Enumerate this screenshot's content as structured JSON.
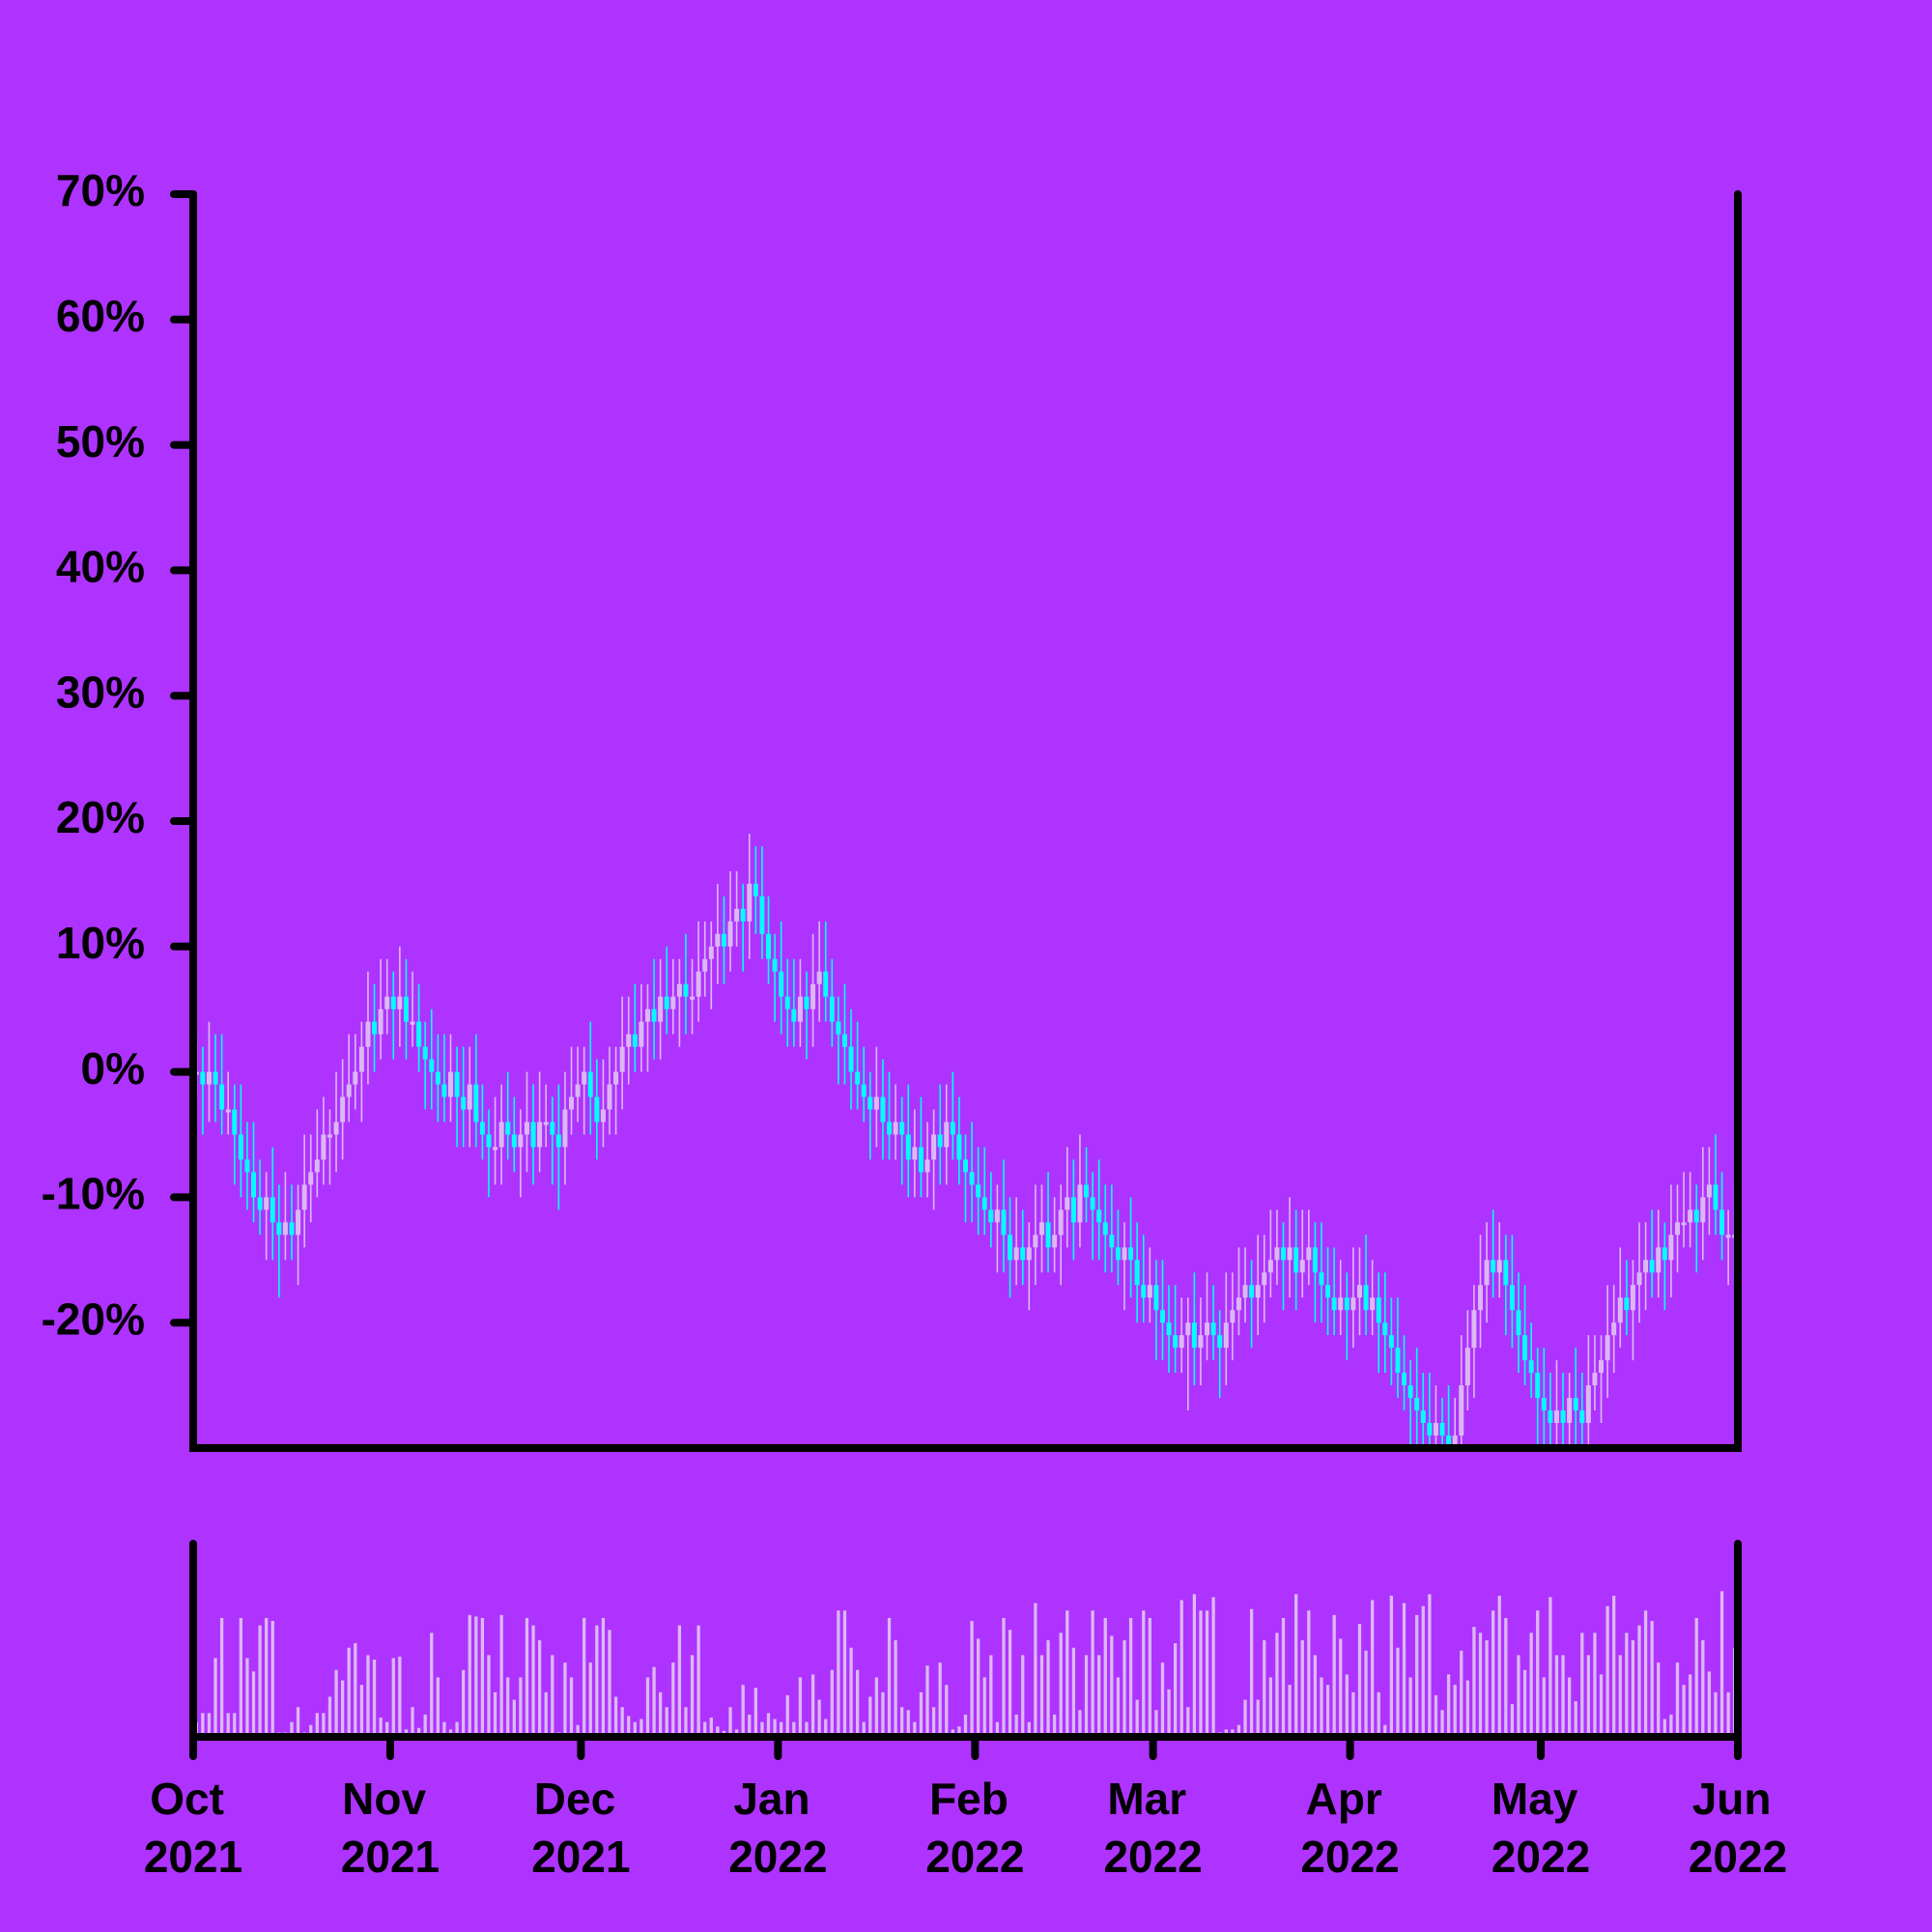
{
  "chart_data": {
    "type": "candlestick",
    "x": [
      0.5,
      1.5,
      2.5,
      3.5,
      4.5,
      5.5,
      6.5,
      7.5,
      8.5,
      9.5,
      10.5,
      11.5,
      12.5,
      13.5,
      14.5,
      15.5,
      16.5,
      17.5,
      18.5,
      19.5,
      20.5,
      21.5,
      22.5,
      23.5,
      24.5,
      25.5,
      26.5,
      27.5,
      28.5,
      29.5,
      30.5,
      31.5,
      32.5,
      33.5,
      34.5,
      35.5,
      36.5,
      37.5,
      38.5,
      39.5,
      40.5,
      41.5,
      42.5,
      43.5,
      44.5,
      45.5,
      46.5,
      47.5,
      48.5,
      49.5,
      50.5,
      51.5,
      52.5,
      53.5,
      54.5,
      55.5,
      56.5,
      57.5,
      58.5,
      59.5,
      60.5,
      61.5,
      62.5,
      63.5,
      64.5,
      65.5,
      66.5,
      67.5,
      68.5,
      69.5,
      70.5,
      71.5,
      72.5,
      73.5,
      74.5,
      75.5,
      76.5,
      77.5,
      78.5,
      79.5,
      80.5,
      81.5,
      82.5,
      83.5,
      84.5,
      85.5,
      86.5,
      87.5,
      88.5,
      89.5,
      90.5,
      91.5,
      92.5,
      93.5,
      94.5,
      95.5,
      96.5,
      97.5,
      98.5,
      99.5,
      100.5,
      101.5,
      102.5,
      103.5,
      104.5,
      105.5,
      106.5,
      107.5,
      108.5,
      109.5,
      110.5,
      111.5,
      112.5,
      113.5,
      114.5,
      115.5,
      116.5,
      117.5,
      118.5,
      119.5,
      120.5,
      121.5,
      122.5,
      123.5,
      124.5,
      125.5,
      126.5,
      127.5,
      128.5,
      129.5,
      130.5,
      131.5,
      132.5,
      133.5,
      134.5,
      135.5,
      136.5,
      137.5,
      138.5,
      139.5,
      140.5,
      141.5,
      142.5,
      143.5,
      144.5,
      145.5,
      146.5,
      147.5,
      148.5,
      149.5,
      150.5,
      151.5,
      152.5,
      153.5,
      154.5,
      155.5,
      156.5,
      157.5,
      158.5,
      159.5,
      160.5,
      161.5,
      162.5,
      163.5,
      164.5,
      165.5,
      166.5,
      167.5,
      168.5,
      169.5,
      170.5,
      171.5,
      172.5,
      173.5,
      174.5,
      175.5,
      176.5,
      177.5,
      178.5,
      179.5,
      180.5,
      181.5,
      182.5,
      183.5,
      184.5,
      185.5,
      186.5,
      187.5,
      188.5,
      189.5,
      190.5,
      191.5,
      192.5,
      193.5,
      194.5,
      195.5,
      196.5,
      197.5,
      198.5,
      199.5,
      200.5,
      201.5,
      202.5,
      203.5,
      204.5,
      205.5,
      206.5,
      207.5,
      208.5,
      209.5,
      210.5,
      211.5,
      212.5,
      213.5,
      214.5,
      215.5,
      216.5,
      217.5,
      218.5,
      219.5,
      220.5,
      221.5,
      222.5,
      223.5,
      224.5,
      225.5,
      226.5,
      227.5,
      228.5,
      229.5,
      230.5,
      231.5,
      232.5,
      233.5,
      234.5,
      235.5,
      236.5,
      237.5,
      238.5,
      239.5,
      240.5,
      241.5,
      242.5
    ],
    "open": [
      0,
      0,
      -1,
      0,
      -1,
      -3,
      -3,
      -5,
      -7,
      -8,
      -10,
      -11,
      -10,
      -12,
      -13,
      -12,
      -13,
      -11,
      -9,
      -8,
      -7,
      -5,
      -5,
      -4,
      -2,
      -1,
      0,
      2,
      4,
      3,
      5,
      6,
      5,
      6,
      4,
      4,
      2,
      1,
      0,
      -1,
      -2,
      0,
      -2,
      -3,
      -1,
      -4,
      -5,
      -6,
      -6,
      -4,
      -5,
      -6,
      -5,
      -4,
      -6,
      -4,
      -4,
      -5,
      -6,
      -3,
      -2,
      -1,
      0,
      -2,
      -4,
      -3,
      -1,
      0,
      2,
      3,
      2,
      4,
      5,
      4,
      6,
      5,
      6,
      7,
      6,
      6,
      8,
      9,
      10,
      11,
      10,
      12,
      13,
      12,
      15,
      14,
      11,
      9,
      8,
      6,
      5,
      4,
      6,
      5,
      7,
      8,
      6,
      4,
      3,
      2,
      0,
      -1,
      -2,
      -3,
      -2,
      -4,
      -5,
      -4,
      -5,
      -7,
      -6,
      -8,
      -7,
      -5,
      -6,
      -4,
      -5,
      -7,
      -8,
      -9,
      -10,
      -11,
      -12,
      -11,
      -13,
      -15,
      -14,
      -15,
      -14,
      -13,
      -12,
      -14,
      -13,
      -11,
      -10,
      -12,
      -9,
      -10,
      -11,
      -12,
      -13,
      -14,
      -15,
      -14,
      -15,
      -17,
      -18,
      -17,
      -19,
      -20,
      -21,
      -22,
      -21,
      -20,
      -22,
      -21,
      -20,
      -21,
      -22,
      -20,
      -19,
      -18,
      -17,
      -18,
      -17,
      -16,
      -15,
      -14,
      -15,
      -14,
      -16,
      -15,
      -14,
      -16,
      -17,
      -18,
      -19,
      -18,
      -19,
      -18,
      -17,
      -19,
      -18,
      -20,
      -21,
      -22,
      -24,
      -25,
      -26,
      -27,
      -28,
      -29,
      -28,
      -29,
      -30,
      -29,
      -25,
      -22,
      -19,
      -17,
      -15,
      -16,
      -15,
      -17,
      -19,
      -21,
      -23,
      -24,
      -26,
      -27,
      -28,
      -27,
      -28,
      -26,
      -27,
      -28,
      -25,
      -24,
      -23,
      -21,
      -20,
      -18,
      -19,
      -17,
      -16,
      -15,
      -16,
      -14,
      -15,
      -13,
      -12,
      -12,
      -11,
      -12,
      -10,
      -9,
      -11,
      -13,
      -13
    ],
    "high": [
      3,
      2,
      4,
      3,
      3,
      0,
      -1,
      -1,
      -4,
      -4,
      -7,
      -8,
      -6,
      -9,
      -8,
      -9,
      -9,
      -5,
      -5,
      -3,
      -2,
      -3,
      0,
      1,
      3,
      3,
      4,
      8,
      7,
      9,
      9,
      8,
      10,
      9,
      8,
      7,
      4,
      5,
      3,
      3,
      3,
      2,
      2,
      2,
      3,
      -1,
      -3,
      -2,
      -1,
      0,
      -2,
      -3,
      0,
      -1,
      0,
      -1,
      -2,
      -1,
      0,
      2,
      2,
      2,
      4,
      1,
      1,
      2,
      2,
      6,
      6,
      7,
      7,
      7,
      9,
      9,
      10,
      9,
      9,
      11,
      9,
      12,
      12,
      12,
      15,
      14,
      16,
      16,
      15,
      19,
      18,
      18,
      14,
      11,
      12,
      9,
      9,
      9,
      8,
      11,
      12,
      12,
      9,
      6,
      7,
      5,
      4,
      2,
      0,
      2,
      1,
      0,
      -1,
      -2,
      -1,
      -3,
      -2,
      -4,
      -3,
      -1,
      -1,
      0,
      -2,
      -5,
      -4,
      -6,
      -6,
      -8,
      -9,
      -7,
      -10,
      -10,
      -11,
      -12,
      -9,
      -9,
      -8,
      -10,
      -9,
      -6,
      -7,
      -5,
      -6,
      -8,
      -7,
      -9,
      -9,
      -11,
      -12,
      -10,
      -12,
      -13,
      -14,
      -15,
      -15,
      -17,
      -17,
      -18,
      -18,
      -16,
      -18,
      -16,
      -17,
      -19,
      -16,
      -16,
      -14,
      -14,
      -15,
      -13,
      -13,
      -11,
      -11,
      -12,
      -10,
      -11,
      -11,
      -11,
      -12,
      -12,
      -14,
      -14,
      -15,
      -16,
      -14,
      -14,
      -13,
      -15,
      -16,
      -16,
      -18,
      -18,
      -21,
      -23,
      -22,
      -24,
      -24,
      -25,
      -26,
      -25,
      -26,
      -21,
      -19,
      -17,
      -13,
      -12,
      -11,
      -12,
      -13,
      -13,
      -16,
      -17,
      -20,
      -22,
      -22,
      -24,
      -23,
      -24,
      -24,
      -22,
      -24,
      -21,
      -21,
      -21,
      -17,
      -17,
      -14,
      -15,
      -15,
      -12,
      -12,
      -11,
      -11,
      -12,
      -9,
      -9,
      -8,
      -8,
      -9,
      -6,
      -6,
      -5,
      -8,
      -11,
      -9
    ],
    "low": [
      -2,
      -5,
      -4,
      -4,
      -5,
      -5,
      -9,
      -10,
      -11,
      -12,
      -13,
      -15,
      -15,
      -18,
      -15,
      -15,
      -17,
      -14,
      -12,
      -10,
      -9,
      -9,
      -8,
      -7,
      -4,
      -3,
      -4,
      -1,
      0,
      1,
      3,
      1,
      2,
      1,
      2,
      0,
      -3,
      -3,
      -4,
      -4,
      -4,
      -6,
      -6,
      -6,
      -6,
      -7,
      -10,
      -9,
      -9,
      -7,
      -8,
      -10,
      -8,
      -9,
      -8,
      -6,
      -9,
      -11,
      -9,
      -5,
      -4,
      -5,
      -5,
      -7,
      -6,
      -5,
      -5,
      -3,
      -1,
      0,
      0,
      0,
      1,
      1,
      3,
      3,
      2,
      3,
      3,
      4,
      6,
      5,
      7,
      7,
      8,
      10,
      8,
      9,
      11,
      9,
      7,
      4,
      3,
      2,
      2,
      2,
      1,
      2,
      4,
      4,
      2,
      -1,
      -1,
      -3,
      -3,
      -4,
      -7,
      -6,
      -7,
      -7,
      -7,
      -9,
      -10,
      -10,
      -10,
      -10,
      -11,
      -9,
      -9,
      -7,
      -9,
      -12,
      -12,
      -13,
      -13,
      -14,
      -16,
      -16,
      -18,
      -17,
      -17,
      -19,
      -17,
      -16,
      -16,
      -16,
      -17,
      -14,
      -15,
      -14,
      -12,
      -15,
      -15,
      -16,
      -16,
      -17,
      -19,
      -18,
      -20,
      -20,
      -20,
      -23,
      -23,
      -24,
      -24,
      -24,
      -27,
      -25,
      -25,
      -23,
      -23,
      -26,
      -25,
      -23,
      -21,
      -20,
      -22,
      -21,
      -20,
      -18,
      -17,
      -19,
      -18,
      -19,
      -18,
      -17,
      -20,
      -20,
      -21,
      -21,
      -21,
      -23,
      -22,
      -21,
      -21,
      -21,
      -24,
      -24,
      -25,
      -26,
      -27,
      -30,
      -30,
      -31,
      -31,
      -31,
      -33,
      -33,
      -33,
      -31,
      -27,
      -26,
      -22,
      -20,
      -18,
      -18,
      -21,
      -22,
      -24,
      -25,
      -26,
      -30,
      -30,
      -31,
      -30,
      -30,
      -32,
      -30,
      -31,
      -30,
      -27,
      -28,
      -26,
      -24,
      -22,
      -21,
      -23,
      -20,
      -19,
      -18,
      -18,
      -19,
      -18,
      -16,
      -14,
      -14,
      -16,
      -15,
      -13,
      -13,
      -15,
      -17,
      -16
    ],
    "close": [
      0,
      -1,
      0,
      -1,
      -3,
      -3,
      -5,
      -7,
      -8,
      -10,
      -11,
      -10,
      -12,
      -13,
      -12,
      -13,
      -11,
      -9,
      -8,
      -7,
      -5,
      -5,
      -4,
      -2,
      -1,
      0,
      2,
      4,
      3,
      5,
      6,
      5,
      6,
      4,
      4,
      2,
      1,
      0,
      -1,
      -2,
      0,
      -2,
      -3,
      -1,
      -4,
      -5,
      -6,
      -6,
      -4,
      -5,
      -6,
      -5,
      -4,
      -6,
      -4,
      -4,
      -5,
      -6,
      -3,
      -2,
      -1,
      0,
      -2,
      -4,
      -3,
      -1,
      0,
      2,
      3,
      2,
      4,
      5,
      4,
      6,
      5,
      6,
      7,
      6,
      6,
      8,
      9,
      10,
      11,
      10,
      12,
      13,
      12,
      15,
      14,
      11,
      9,
      8,
      6,
      5,
      4,
      6,
      5,
      7,
      8,
      6,
      4,
      3,
      2,
      0,
      -1,
      -2,
      -3,
      -2,
      -4,
      -5,
      -4,
      -5,
      -7,
      -6,
      -8,
      -7,
      -5,
      -6,
      -4,
      -5,
      -7,
      -8,
      -9,
      -10,
      -11,
      -12,
      -11,
      -13,
      -15,
      -14,
      -15,
      -14,
      -13,
      -12,
      -14,
      -13,
      -11,
      -10,
      -12,
      -9,
      -10,
      -11,
      -12,
      -13,
      -14,
      -15,
      -14,
      -15,
      -17,
      -18,
      -17,
      -19,
      -20,
      -21,
      -22,
      -21,
      -20,
      -22,
      -21,
      -20,
      -21,
      -22,
      -20,
      -19,
      -18,
      -17,
      -18,
      -17,
      -16,
      -15,
      -14,
      -15,
      -14,
      -16,
      -15,
      -14,
      -16,
      -17,
      -18,
      -19,
      -18,
      -19,
      -18,
      -17,
      -19,
      -18,
      -20,
      -21,
      -22,
      -24,
      -25,
      -26,
      -27,
      -28,
      -29,
      -28,
      -29,
      -30,
      -29,
      -25,
      -22,
      -19,
      -17,
      -15,
      -16,
      -15,
      -17,
      -19,
      -21,
      -23,
      -24,
      -26,
      -27,
      -28,
      -27,
      -28,
      -26,
      -27,
      -28,
      -25,
      -24,
      -23,
      -21,
      -20,
      -18,
      -19,
      -17,
      -16,
      -15,
      -16,
      -14,
      -15,
      -13,
      -12,
      -12,
      -11,
      -12,
      -10,
      -9,
      -11,
      -13,
      -13,
      -13
    ],
    "volume": [
      10,
      16,
      16,
      53,
      80,
      16,
      16,
      80,
      53,
      44,
      75,
      80,
      78,
      3,
      3,
      10,
      20,
      3,
      8,
      16,
      16,
      27,
      45,
      38,
      60,
      63,
      35,
      55,
      52,
      13,
      10,
      53,
      54,
      5,
      20,
      6,
      15,
      70,
      40,
      10,
      5,
      10,
      45,
      82,
      81,
      80,
      55,
      30,
      82,
      40,
      25,
      40,
      80,
      75,
      65,
      30,
      55,
      3,
      50,
      40,
      8,
      80,
      50,
      75,
      80,
      72,
      27,
      20,
      14,
      10,
      12,
      40,
      47,
      30,
      20,
      50,
      75,
      20,
      55,
      75,
      10,
      13,
      7,
      4,
      20,
      5,
      35,
      15,
      33,
      10,
      16,
      12,
      10,
      28,
      10,
      40,
      10,
      42,
      25,
      12,
      45,
      85,
      85,
      60,
      45,
      10,
      27,
      40,
      30,
      80,
      65,
      20,
      18,
      10,
      30,
      48,
      20,
      50,
      35,
      5,
      7,
      15,
      78,
      66,
      40,
      55,
      10,
      80,
      72,
      15,
      55,
      10,
      90,
      55,
      65,
      15,
      70,
      85,
      60,
      18,
      55,
      85,
      55,
      80,
      68,
      40,
      65,
      80,
      25,
      85,
      80,
      18,
      50,
      32,
      63,
      92,
      20,
      96,
      85,
      85,
      94,
      3,
      5,
      5,
      8,
      25,
      86,
      25,
      65,
      40,
      70,
      80,
      35,
      96,
      65,
      85,
      55,
      40,
      35,
      82,
      66,
      42,
      30,
      76,
      58,
      92,
      30,
      8,
      95,
      60,
      90,
      40,
      82,
      88,
      96,
      28,
      18,
      42,
      35,
      58,
      38,
      74,
      70,
      65,
      85,
      95,
      80,
      22,
      55,
      45,
      70,
      85,
      40,
      94,
      55,
      55,
      40,
      24,
      70,
      55,
      70,
      42,
      88,
      95,
      55,
      70,
      65,
      75,
      85,
      78,
      50,
      12,
      15,
      50,
      35,
      42,
      80,
      65,
      44,
      30,
      98,
      30,
      60
    ],
    "xlim": [
      0,
      243
    ],
    "xticks": [
      {
        "value": 0,
        "label": "Oct 2021"
      },
      {
        "value": 31,
        "label": "Nov 2021"
      },
      {
        "value": 61,
        "label": "Dec 2021"
      },
      {
        "value": 92,
        "label": "Jan 2022"
      },
      {
        "value": 123,
        "label": "Feb 2022"
      },
      {
        "value": 151,
        "label": "Mar 2022"
      },
      {
        "value": 182,
        "label": "Apr 2022"
      },
      {
        "value": 212,
        "label": "May 2022"
      },
      {
        "value": 243,
        "label": "Jun 2022"
      }
    ],
    "ylim": [
      -30,
      70
    ],
    "yticks": [
      {
        "value": -20,
        "label": "-20%"
      },
      {
        "value": -10,
        "label": "-10%"
      },
      {
        "value": 0,
        "label": "0%"
      },
      {
        "value": 10,
        "label": "10%"
      },
      {
        "value": 20,
        "label": "20%"
      },
      {
        "value": 30,
        "label": "30%"
      },
      {
        "value": 40,
        "label": "40%"
      },
      {
        "value": 50,
        "label": "50%"
      },
      {
        "value": 60,
        "label": "60%"
      },
      {
        "value": 70,
        "label": "70%"
      }
    ],
    "volume_lim": [
      0,
      130
    ],
    "up_color": "#dcb8f2",
    "down_color": "#00ffff",
    "volume_color": "#dcb8f2"
  }
}
